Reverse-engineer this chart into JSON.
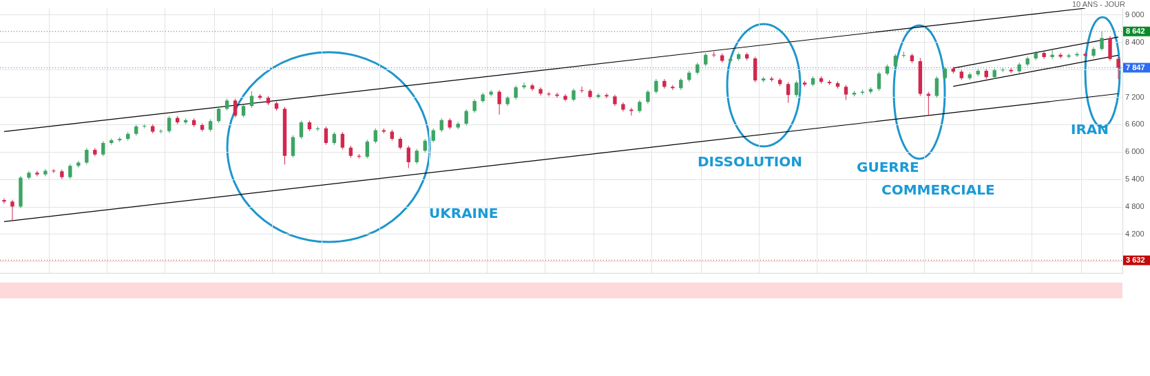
{
  "chart_data": {
    "type": "candlestick",
    "subtitle": "10 ANS - JOUR",
    "annotations": [
      "UKRAINE",
      "DISSOLUTION",
      "GUERRE\nCOMMERCIALE",
      "IRAN"
    ],
    "categories": [
      null,
      null,
      null,
      null,
      null,
      null,
      null,
      null,
      null,
      null,
      null,
      null,
      null,
      null,
      null,
      null,
      null,
      null,
      null,
      null,
      null,
      null,
      null,
      null,
      null,
      null,
      null,
      null,
      null,
      null,
      null,
      null,
      null,
      null,
      null,
      null,
      null,
      null,
      null,
      null,
      null,
      null,
      null,
      null,
      null,
      null,
      null,
      null,
      null,
      null,
      null,
      null,
      null,
      null,
      null,
      null,
      null,
      null,
      null,
      null,
      null,
      null,
      null,
      null,
      null,
      null,
      null,
      null,
      null,
      null,
      null,
      null,
      null,
      null,
      null,
      null,
      null,
      null,
      null,
      null,
      null,
      null,
      null,
      null,
      null,
      null,
      null,
      null,
      null,
      null,
      null,
      null,
      null,
      null,
      null,
      null,
      null,
      null,
      null,
      null,
      null,
      null,
      null,
      null,
      null,
      null,
      null,
      null,
      null,
      null,
      null,
      null,
      null,
      null,
      null,
      null,
      null,
      null,
      null,
      null,
      null,
      null,
      null,
      null,
      null,
      null,
      null,
      null,
      null,
      null,
      null,
      null,
      null,
      null,
      null,
      null
    ],
    "ohlc": [
      [
        4950,
        4990,
        4870,
        4917
      ],
      [
        4917,
        4957,
        4500,
        4810
      ],
      [
        4810,
        5480,
        4770,
        5440
      ],
      [
        5440,
        5590,
        5400,
        5550
      ],
      [
        5550,
        5590,
        5470,
        5510
      ],
      [
        5510,
        5630,
        5470,
        5590
      ],
      [
        5590,
        5630,
        5540,
        5580
      ],
      [
        5580,
        5620,
        5410,
        5450
      ],
      [
        5450,
        5740,
        5410,
        5700
      ],
      [
        5700,
        5810,
        5660,
        5770
      ],
      [
        5770,
        6090,
        5730,
        6050
      ],
      [
        6050,
        6090,
        5910,
        5950
      ],
      [
        5950,
        6240,
        5910,
        6200
      ],
      [
        6200,
        6300,
        6160,
        6260
      ],
      [
        6260,
        6330,
        6220,
        6290
      ],
      [
        6290,
        6440,
        6250,
        6400
      ],
      [
        6400,
        6600,
        6360,
        6560
      ],
      [
        6560,
        6610,
        6520,
        6570
      ],
      [
        6570,
        6610,
        6410,
        6450
      ],
      [
        6450,
        6500,
        6410,
        6460
      ],
      [
        6460,
        6790,
        6420,
        6750
      ],
      [
        6750,
        6790,
        6610,
        6650
      ],
      [
        6650,
        6740,
        6610,
        6700
      ],
      [
        6700,
        6740,
        6550,
        6590
      ],
      [
        6590,
        6630,
        6450,
        6490
      ],
      [
        6490,
        6720,
        6450,
        6680
      ],
      [
        6680,
        6990,
        6640,
        6950
      ],
      [
        6950,
        7170,
        6910,
        7130
      ],
      [
        7130,
        7170,
        6760,
        6800
      ],
      [
        6800,
        7050,
        6760,
        7010
      ],
      [
        7010,
        7335,
        6970,
        7230
      ],
      [
        7230,
        7270,
        7150,
        7190
      ],
      [
        7190,
        7230,
        7030,
        7070
      ],
      [
        7070,
        7110,
        6910,
        6950
      ],
      [
        6950,
        6990,
        5730,
        5920
      ],
      [
        5920,
        6370,
        5880,
        6330
      ],
      [
        6330,
        6690,
        6290,
        6650
      ],
      [
        6650,
        6690,
        6460,
        6500
      ],
      [
        6500,
        6560,
        6460,
        6520
      ],
      [
        6520,
        6560,
        6160,
        6200
      ],
      [
        6200,
        6440,
        6160,
        6400
      ],
      [
        6400,
        6440,
        6060,
        6100
      ],
      [
        6100,
        6140,
        5880,
        5920
      ],
      [
        5920,
        5960,
        5860,
        5900
      ],
      [
        5900,
        6270,
        5860,
        6230
      ],
      [
        6230,
        6520,
        6190,
        6480
      ],
      [
        6480,
        6520,
        6410,
        6450
      ],
      [
        6450,
        6490,
        6250,
        6290
      ],
      [
        6290,
        6330,
        6060,
        6100
      ],
      [
        6100,
        6140,
        5650,
        5780
      ],
      [
        5780,
        6070,
        5740,
        6030
      ],
      [
        6030,
        6290,
        5990,
        6250
      ],
      [
        6250,
        6520,
        6210,
        6480
      ],
      [
        6480,
        6740,
        6440,
        6700
      ],
      [
        6700,
        6740,
        6500,
        6540
      ],
      [
        6540,
        6660,
        6500,
        6620
      ],
      [
        6620,
        6940,
        6580,
        6900
      ],
      [
        6900,
        7160,
        6860,
        7120
      ],
      [
        7120,
        7300,
        7080,
        7260
      ],
      [
        7260,
        7360,
        7220,
        7320
      ],
      [
        7320,
        7360,
        6820,
        7050
      ],
      [
        7050,
        7230,
        7010,
        7190
      ],
      [
        7190,
        7460,
        7150,
        7420
      ],
      [
        7420,
        7525,
        7380,
        7460
      ],
      [
        7460,
        7500,
        7340,
        7380
      ],
      [
        7380,
        7420,
        7240,
        7280
      ],
      [
        7280,
        7320,
        7220,
        7260
      ],
      [
        7260,
        7300,
        7190,
        7230
      ],
      [
        7230,
        7270,
        7110,
        7150
      ],
      [
        7150,
        7390,
        7110,
        7350
      ],
      [
        7350,
        7440,
        7300,
        7340
      ],
      [
        7340,
        7380,
        7170,
        7210
      ],
      [
        7210,
        7290,
        7170,
        7250
      ],
      [
        7250,
        7290,
        7180,
        7220
      ],
      [
        7220,
        7260,
        7010,
        7050
      ],
      [
        7050,
        7090,
        6890,
        6930
      ],
      [
        6930,
        6970,
        6800,
        6900
      ],
      [
        6900,
        7140,
        6860,
        7100
      ],
      [
        7100,
        7360,
        7060,
        7320
      ],
      [
        7320,
        7600,
        7280,
        7560
      ],
      [
        7560,
        7600,
        7390,
        7430
      ],
      [
        7430,
        7470,
        7360,
        7400
      ],
      [
        7400,
        7620,
        7360,
        7580
      ],
      [
        7580,
        7780,
        7540,
        7740
      ],
      [
        7740,
        7960,
        7700,
        7920
      ],
      [
        7920,
        8170,
        7880,
        8130
      ],
      [
        8130,
        8200,
        8080,
        8120
      ],
      [
        8120,
        8160,
        7960,
        8000
      ],
      [
        8000,
        8080,
        7960,
        8040
      ],
      [
        8040,
        8180,
        8000,
        8140
      ],
      [
        8140,
        8180,
        8010,
        8050
      ],
      [
        8050,
        8090,
        7530,
        7570
      ],
      [
        7570,
        7650,
        7530,
        7610
      ],
      [
        7610,
        7650,
        7540,
        7580
      ],
      [
        7580,
        7620,
        7450,
        7490
      ],
      [
        7490,
        7530,
        7080,
        7250
      ],
      [
        7250,
        7560,
        7210,
        7520
      ],
      [
        7520,
        7560,
        7440,
        7480
      ],
      [
        7480,
        7660,
        7440,
        7620
      ],
      [
        7620,
        7660,
        7500,
        7540
      ],
      [
        7540,
        7580,
        7470,
        7510
      ],
      [
        7510,
        7550,
        7390,
        7430
      ],
      [
        7430,
        7470,
        7140,
        7260
      ],
      [
        7260,
        7340,
        7220,
        7300
      ],
      [
        7300,
        7360,
        7260,
        7320
      ],
      [
        7320,
        7420,
        7280,
        7380
      ],
      [
        7380,
        7760,
        7340,
        7720
      ],
      [
        7720,
        7920,
        7680,
        7880
      ],
      [
        7880,
        8150,
        7840,
        8110
      ],
      [
        8110,
        8200,
        8070,
        8120
      ],
      [
        8120,
        8160,
        7950,
        7990
      ],
      [
        7990,
        8060,
        7230,
        7275
      ],
      [
        7275,
        7320,
        6790,
        7230
      ],
      [
        7230,
        7660,
        7190,
        7620
      ],
      [
        7620,
        7870,
        7580,
        7830
      ],
      [
        7830,
        7870,
        7720,
        7760
      ],
      [
        7760,
        7800,
        7580,
        7620
      ],
      [
        7620,
        7740,
        7580,
        7700
      ],
      [
        7700,
        7820,
        7660,
        7780
      ],
      [
        7780,
        7820,
        7600,
        7640
      ],
      [
        7640,
        7830,
        7600,
        7790
      ],
      [
        7790,
        7840,
        7750,
        7800
      ],
      [
        7800,
        7840,
        7730,
        7770
      ],
      [
        7770,
        7960,
        7730,
        7920
      ],
      [
        7920,
        8090,
        7880,
        8050
      ],
      [
        8050,
        8210,
        8010,
        8170
      ],
      [
        8170,
        8210,
        8040,
        8080
      ],
      [
        8080,
        8240,
        8040,
        8130
      ],
      [
        8130,
        8170,
        8050,
        8090
      ],
      [
        8090,
        8160,
        8050,
        8120
      ],
      [
        8120,
        8190,
        8080,
        8150
      ],
      [
        8150,
        8190,
        8070,
        8110
      ],
      [
        8110,
        8300,
        8070,
        8260
      ],
      [
        8260,
        8642,
        8220,
        8500
      ],
      [
        8500,
        8540,
        8000,
        8040
      ],
      [
        8040,
        8080,
        7600,
        7847
      ]
    ],
    "colors": [
      "#d1284f",
      "#d1284f",
      "#3da564",
      "#3da564",
      "#d1284f",
      "#3da564",
      "#d1284f",
      "#d1284f",
      "#3da564",
      "#3da564",
      "#3da564",
      "#d1284f",
      "#3da564",
      "#3da564",
      "#3da564",
      "#3da564",
      "#3da564",
      "#3da564",
      "#d1284f",
      "#3da564",
      "#3da564",
      "#d1284f",
      "#3da564",
      "#d1284f",
      "#d1284f",
      "#3da564",
      "#3da564",
      "#3da564",
      "#d1284f",
      "#3da564",
      "#3da564",
      "#d1284f",
      "#d1284f",
      "#d1284f",
      "#d1284f",
      "#3da564",
      "#3da564",
      "#d1284f",
      "#3da564",
      "#d1284f",
      "#3da564",
      "#d1284f",
      "#d1284f",
      "#d1284f",
      "#3da564",
      "#3da564",
      "#d1284f",
      "#d1284f",
      "#d1284f",
      "#d1284f",
      "#3da564",
      "#3da564",
      "#3da564",
      "#3da564",
      "#d1284f",
      "#3da564",
      "#3da564",
      "#3da564",
      "#3da564",
      "#3da564",
      "#d1284f",
      "#3da564",
      "#3da564",
      "#3da564",
      "#d1284f",
      "#d1284f",
      "#d1284f",
      "#d1284f",
      "#d1284f",
      "#3da564",
      "#d1284f",
      "#d1284f",
      "#3da564",
      "#d1284f",
      "#d1284f",
      "#d1284f",
      "#d1284f",
      "#3da564",
      "#3da564",
      "#3da564",
      "#d1284f",
      "#d1284f",
      "#3da564",
      "#3da564",
      "#3da564",
      "#3da564",
      "#d1284f",
      "#d1284f",
      "#3da564",
      "#3da564",
      "#d1284f",
      "#d1284f",
      "#3da564",
      "#d1284f",
      "#d1284f",
      "#d1284f",
      "#3da564",
      "#d1284f",
      "#3da564",
      "#d1284f",
      "#d1284f",
      "#d1284f",
      "#d1284f",
      "#3da564",
      "#3da564",
      "#3da564",
      "#3da564",
      "#3da564",
      "#3da564",
      "#3da564",
      "#d1284f",
      "#d1284f",
      "#d1284f",
      "#3da564",
      "#3da564",
      "#d1284f",
      "#d1284f",
      "#3da564",
      "#3da564",
      "#d1284f",
      "#3da564",
      "#3da564",
      "#d1284f",
      "#3da564",
      "#3da564",
      "#3da564",
      "#d1284f",
      "#3da564",
      "#d1284f",
      "#3da564",
      "#3da564",
      "#d1284f",
      "#3da564",
      "#3da564",
      "#d1284f",
      "#d1284f"
    ],
    "series": [
      {
        "type": "line",
        "color": "#000000",
        "values": [
          6450,
          null,
          null,
          null,
          null,
          null,
          null,
          null,
          null,
          null,
          null,
          null,
          null,
          null,
          null,
          null,
          null,
          null,
          null,
          null,
          null,
          null,
          null,
          null,
          null,
          null,
          null,
          null,
          null,
          null,
          null,
          null,
          null,
          null,
          null,
          null,
          null,
          null,
          null,
          null,
          null,
          null,
          null,
          null,
          null,
          null,
          null,
          null,
          null,
          null,
          null,
          null,
          null,
          null,
          null,
          null,
          null,
          null,
          null,
          null,
          null,
          null,
          null,
          null,
          null,
          null,
          null,
          null,
          null,
          null,
          null,
          null,
          null,
          null,
          null,
          null,
          null,
          null,
          null,
          null,
          null,
          null,
          null,
          null,
          null,
          null,
          null,
          null,
          null,
          null,
          null,
          null,
          null,
          null,
          null,
          null,
          null,
          null,
          null,
          null,
          null,
          null,
          null,
          null,
          null,
          null,
          null,
          null,
          null,
          null,
          null,
          null,
          null,
          null,
          null,
          null,
          null,
          null,
          null,
          null,
          null,
          null,
          null,
          null,
          null,
          null,
          null,
          null,
          null,
          null,
          null,
          9150,
          null,
          null,
          null,
          null
        ]
      },
      {
        "type": "line",
        "color": "#000000",
        "values": [
          4480,
          null,
          null,
          null,
          null,
          null,
          null,
          null,
          null,
          null,
          null,
          null,
          null,
          null,
          null,
          null,
          null,
          null,
          null,
          null,
          null,
          null,
          null,
          null,
          null,
          null,
          null,
          null,
          null,
          null,
          null,
          null,
          null,
          null,
          null,
          null,
          null,
          null,
          null,
          null,
          null,
          null,
          null,
          null,
          null,
          null,
          null,
          null,
          null,
          null,
          null,
          null,
          null,
          null,
          null,
          null,
          null,
          null,
          null,
          null,
          null,
          null,
          null,
          null,
          null,
          null,
          null,
          null,
          null,
          null,
          null,
          null,
          null,
          null,
          null,
          null,
          null,
          null,
          null,
          null,
          null,
          null,
          null,
          null,
          null,
          null,
          null,
          null,
          null,
          null,
          null,
          null,
          null,
          null,
          null,
          null,
          null,
          null,
          null,
          null,
          null,
          null,
          null,
          null,
          null,
          null,
          null,
          null,
          null,
          null,
          null,
          null,
          null,
          null,
          null,
          null,
          null,
          null,
          null,
          null,
          null,
          null,
          null,
          null,
          null,
          null,
          null,
          null,
          null,
          null,
          null,
          null,
          null,
          null,
          null,
          7280
        ]
      },
      {
        "type": "line",
        "color": "#000000",
        "values": [
          null,
          null,
          null,
          null,
          null,
          null,
          null,
          null,
          null,
          null,
          null,
          null,
          null,
          null,
          null,
          null,
          null,
          null,
          null,
          null,
          null,
          null,
          null,
          null,
          null,
          null,
          null,
          null,
          null,
          null,
          null,
          null,
          null,
          null,
          null,
          null,
          null,
          null,
          null,
          null,
          null,
          null,
          null,
          null,
          null,
          null,
          null,
          null,
          null,
          null,
          null,
          null,
          null,
          null,
          null,
          null,
          null,
          null,
          null,
          null,
          null,
          null,
          null,
          null,
          null,
          null,
          null,
          null,
          null,
          null,
          null,
          null,
          null,
          null,
          null,
          null,
          null,
          null,
          null,
          null,
          null,
          null,
          null,
          null,
          null,
          null,
          null,
          null,
          null,
          null,
          null,
          null,
          null,
          null,
          null,
          null,
          null,
          null,
          null,
          null,
          null,
          null,
          null,
          null,
          null,
          null,
          null,
          null,
          null,
          null,
          null,
          null,
          null,
          null,
          null,
          7840,
          null,
          null,
          null,
          null,
          null,
          null,
          null,
          null,
          null,
          null,
          null,
          null,
          null,
          null,
          null,
          null,
          null,
          null,
          null,
          8520
        ]
      },
      {
        "type": "line",
        "color": "#000000",
        "values": [
          null,
          null,
          null,
          null,
          null,
          null,
          null,
          null,
          null,
          null,
          null,
          null,
          null,
          null,
          null,
          null,
          null,
          null,
          null,
          null,
          null,
          null,
          null,
          null,
          null,
          null,
          null,
          null,
          null,
          null,
          null,
          null,
          null,
          null,
          null,
          null,
          null,
          null,
          null,
          null,
          null,
          null,
          null,
          null,
          null,
          null,
          null,
          null,
          null,
          null,
          null,
          null,
          null,
          null,
          null,
          null,
          null,
          null,
          null,
          null,
          null,
          null,
          null,
          null,
          null,
          null,
          null,
          null,
          null,
          null,
          null,
          null,
          null,
          null,
          null,
          null,
          null,
          null,
          null,
          null,
          null,
          null,
          null,
          null,
          null,
          null,
          null,
          null,
          null,
          null,
          null,
          null,
          null,
          null,
          null,
          null,
          null,
          null,
          null,
          null,
          null,
          null,
          null,
          null,
          null,
          null,
          null,
          null,
          null,
          null,
          null,
          null,
          null,
          null,
          null,
          7440,
          null,
          null,
          null,
          null,
          null,
          null,
          null,
          null,
          null,
          null,
          null,
          null,
          null,
          null,
          null,
          null,
          null,
          null,
          null,
          8120
        ]
      }
    ],
    "ylim": [
      3350,
      9150
    ],
    "yticks": [
      {
        "value": 3600,
        "label": null
      },
      {
        "value": 4200,
        "label": "4 200"
      },
      {
        "value": 4800,
        "label": "4 800"
      },
      {
        "value": 5400,
        "label": "5 400"
      },
      {
        "value": 6000,
        "label": "6 000"
      },
      {
        "value": 6600,
        "label": "6 600"
      },
      {
        "value": 7200,
        "label": "7 200"
      },
      {
        "value": 7800,
        "label": null
      },
      {
        "value": 8400,
        "label": "8 400"
      },
      {
        "value": 9000,
        "label": "9 000"
      }
    ],
    "ref_lines": [
      {
        "axis": "y",
        "value": 8642,
        "label": "8 642",
        "color": "#0b8a2b",
        "line_style": "dotted"
      },
      {
        "axis": "y",
        "value": 7847,
        "label": "7 847",
        "color": "#2e6cf2",
        "line_style": "dotted"
      },
      {
        "axis": "y",
        "value": 3632,
        "label": "3 632",
        "color": "#c40a0a",
        "line_style": "dotted"
      }
    ],
    "grid": true,
    "tick_labels": "y"
  }
}
